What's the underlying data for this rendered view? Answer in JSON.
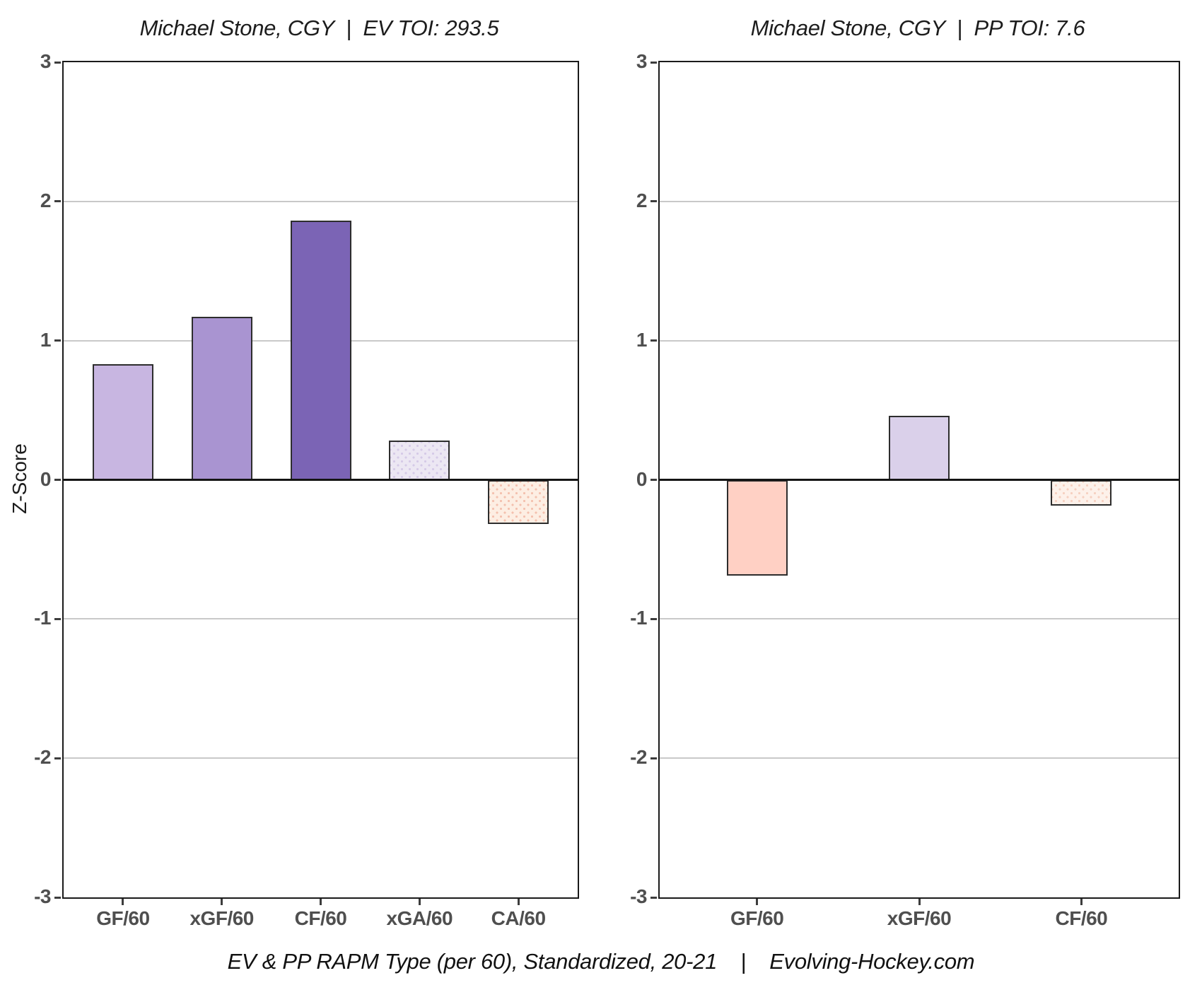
{
  "page": {
    "caption": "EV & PP RAPM Type (per 60), Standardized, 20-21    |    Evolving-Hockey.com"
  },
  "chart_data": [
    {
      "type": "bar",
      "title": "Michael Stone, CGY  |  EV TOI: 293.5",
      "player": "Michael Stone",
      "team": "CGY",
      "strength": "EV",
      "toi": 293.5,
      "ylabel": "Z-Score",
      "ylim": [
        -3,
        3
      ],
      "yticks": [
        3,
        2,
        1,
        0,
        -1,
        -2,
        -3
      ],
      "grid": "horizontal",
      "legend": "none",
      "categories": [
        "GF/60",
        "xGF/60",
        "CF/60",
        "xGA/60",
        "CA/60"
      ],
      "values": [
        0.83,
        1.17,
        1.86,
        0.28,
        -0.31
      ],
      "bar_fills": [
        "#c8b6e1",
        "#a994d1",
        "#7b64b5",
        "#ece7f3",
        "#fdeee3"
      ],
      "bar_dot_fills": [
        null,
        null,
        null,
        "#d5cae7",
        "#f4c0ae"
      ],
      "bar_border": "#2d2d2d"
    },
    {
      "type": "bar",
      "title": "Michael Stone, CGY  |  PP TOI: 7.6",
      "player": "Michael Stone",
      "team": "CGY",
      "strength": "PP",
      "toi": 7.6,
      "ylabel": "",
      "ylim": [
        -3,
        3
      ],
      "yticks": [
        3,
        2,
        1,
        0,
        -1,
        -2,
        -3
      ],
      "grid": "horizontal",
      "legend": "none",
      "categories": [
        "GF/60",
        "xGF/60",
        "CF/60"
      ],
      "values": [
        -0.68,
        0.46,
        -0.18
      ],
      "bar_fills": [
        "#ffd0c4",
        "#dad0ea",
        "#fdf1ea"
      ],
      "bar_dot_fills": [
        null,
        null,
        "#f6d0c0"
      ],
      "bar_border": "#2d2d2d"
    }
  ]
}
